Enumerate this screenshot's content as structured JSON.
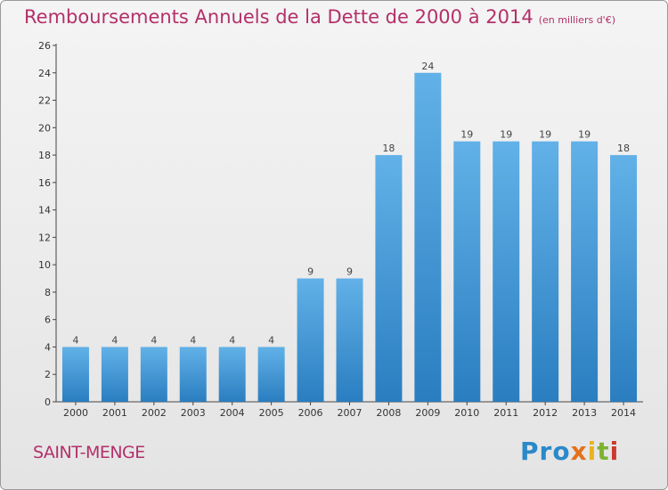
{
  "header": {
    "title": "Remboursements Annuels de la Dette de 2000 à 2014",
    "unit": "(en milliers d'€)"
  },
  "footer": {
    "commune": "SAINT-MENGE",
    "logo": {
      "p1": "Pro",
      "p2": "x",
      "p3": "i",
      "p4": "t",
      "p5": "i"
    }
  },
  "colors": {
    "title": "#b3306a",
    "bar_top": "#62b1e8",
    "bar_bottom": "#2a7ec0"
  },
  "chart_data": {
    "type": "bar",
    "title": "Remboursements Annuels de la Dette de 2000 à 2014",
    "xlabel": "",
    "ylabel": "",
    "categories": [
      "2000",
      "2001",
      "2002",
      "2003",
      "2004",
      "2005",
      "2006",
      "2007",
      "2008",
      "2009",
      "2010",
      "2011",
      "2012",
      "2013",
      "2014"
    ],
    "values": [
      4,
      4,
      4,
      4,
      4,
      4,
      9,
      9,
      18,
      24,
      19,
      19,
      19,
      19,
      18
    ],
    "data_labels": [
      "4",
      "4",
      "4",
      "4",
      "4",
      "4",
      "9",
      "9",
      "18",
      "24",
      "19",
      "19",
      "19",
      "19",
      "18"
    ],
    "ylim": [
      0,
      26
    ],
    "yticks": [
      "0",
      "2",
      "4",
      "6",
      "8",
      "10",
      "12",
      "14",
      "16",
      "18",
      "20",
      "22",
      "24",
      "26"
    ],
    "grid": false,
    "legend": "none"
  }
}
